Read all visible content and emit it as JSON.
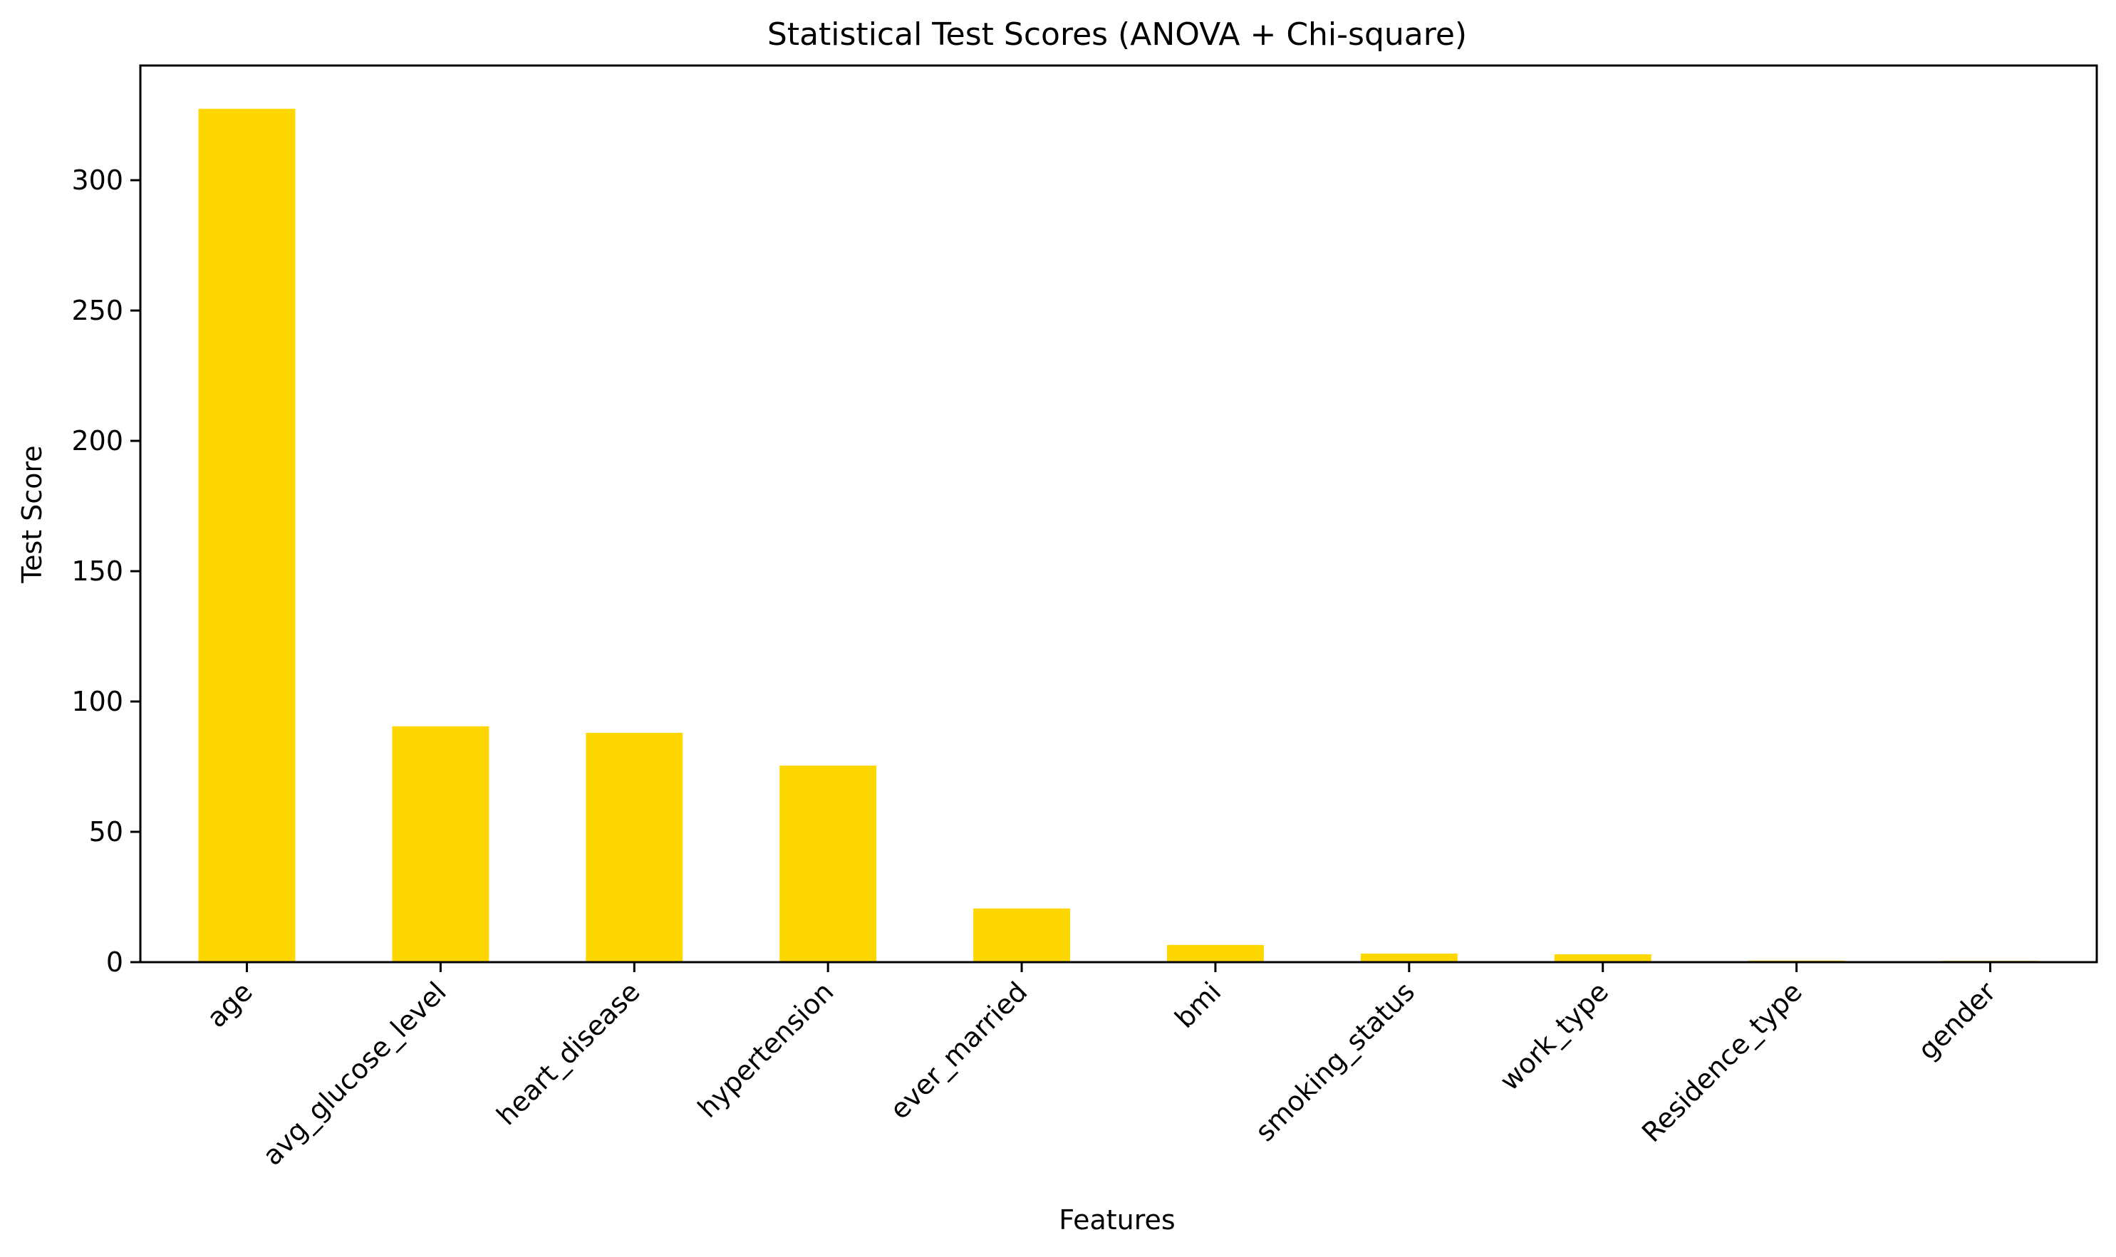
{
  "chart_data": {
    "type": "bar",
    "title": "Statistical Test Scores (ANOVA + Chi-square)",
    "xlabel": "Features",
    "ylabel": "Test Score",
    "categories": [
      "age",
      "avg_glucose_level",
      "heart_disease",
      "hypertension",
      "ever_married",
      "bmi",
      "smoking_status",
      "work_type",
      "Residence_type",
      "gender"
    ],
    "values": [
      327.4,
      90.5,
      88.0,
      75.4,
      20.6,
      6.6,
      3.3,
      3.0,
      0.6,
      0.5
    ],
    "ylim": [
      0,
      344
    ],
    "yticks": [
      0,
      50,
      100,
      150,
      200,
      250,
      300
    ],
    "grid": false,
    "bar_color": "#FFD700"
  }
}
